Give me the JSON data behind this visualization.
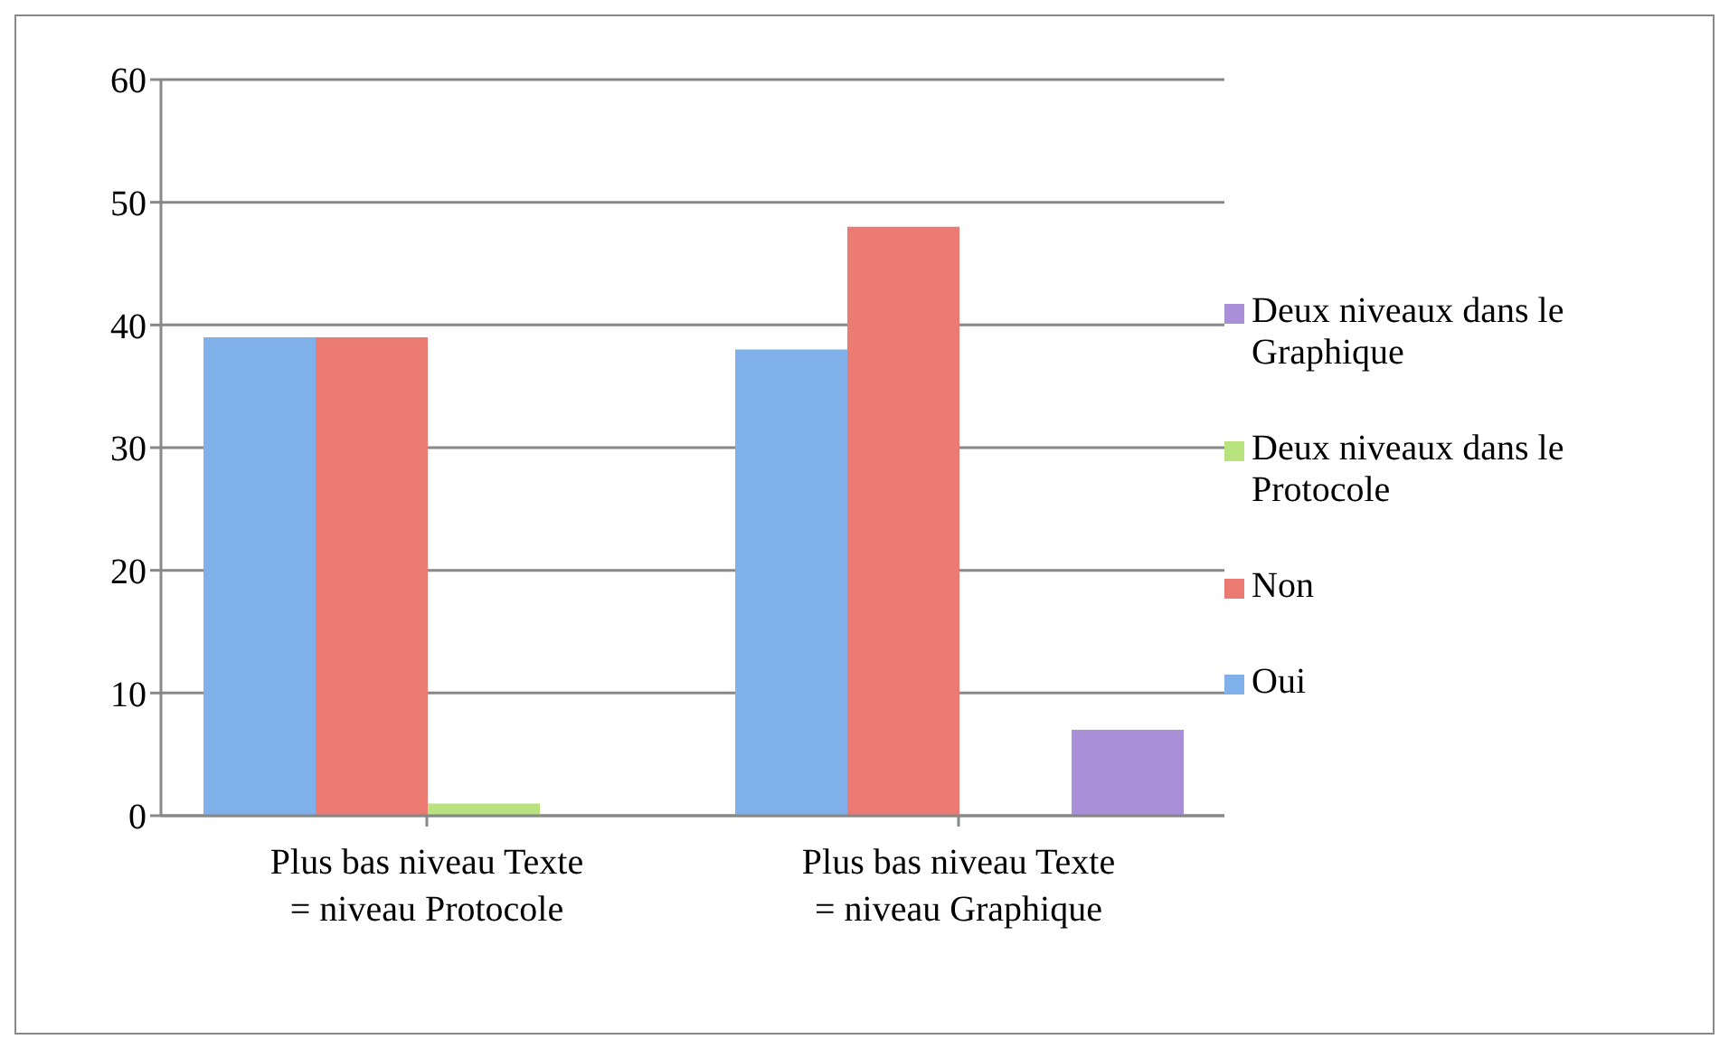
{
  "chart_data": {
    "type": "bar",
    "categories": [
      "Plus bas niveau Texte = niveau Protocole",
      "Plus bas niveau Texte = niveau Graphique"
    ],
    "series": [
      {
        "name": "Oui",
        "color": "#7fb0ea",
        "values": [
          39,
          38
        ]
      },
      {
        "name": "Non",
        "color": "#ea7a72",
        "values": [
          39,
          48
        ]
      },
      {
        "name": "Deux niveaux dans le Protocole",
        "color": "#b8e27e",
        "values": [
          1,
          null
        ]
      },
      {
        "name": "Deux niveaux dans le Graphique",
        "color": "#a88fd8",
        "values": [
          null,
          7
        ]
      }
    ],
    "ylim": [
      0,
      60
    ],
    "yticks": [
      0,
      10,
      20,
      30,
      40,
      50,
      60
    ],
    "grid": "y",
    "legend": "right"
  }
}
